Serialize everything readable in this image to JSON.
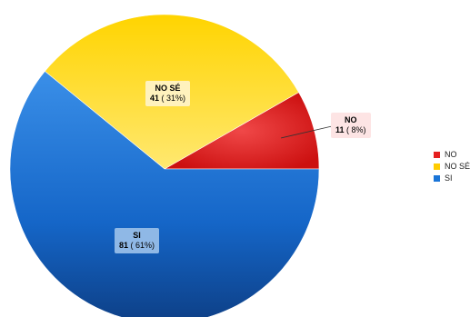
{
  "chart_data": {
    "type": "pie",
    "categories": [
      "NO",
      "NO SÉ",
      "SI"
    ],
    "values": [
      11,
      41,
      81
    ],
    "percent_labels": [
      "( 8%)",
      "( 31%)",
      "( 61%)"
    ],
    "colors": [
      "#e52020",
      "#ffcc00",
      "#1a75d8"
    ],
    "legend_position": "right"
  }
}
